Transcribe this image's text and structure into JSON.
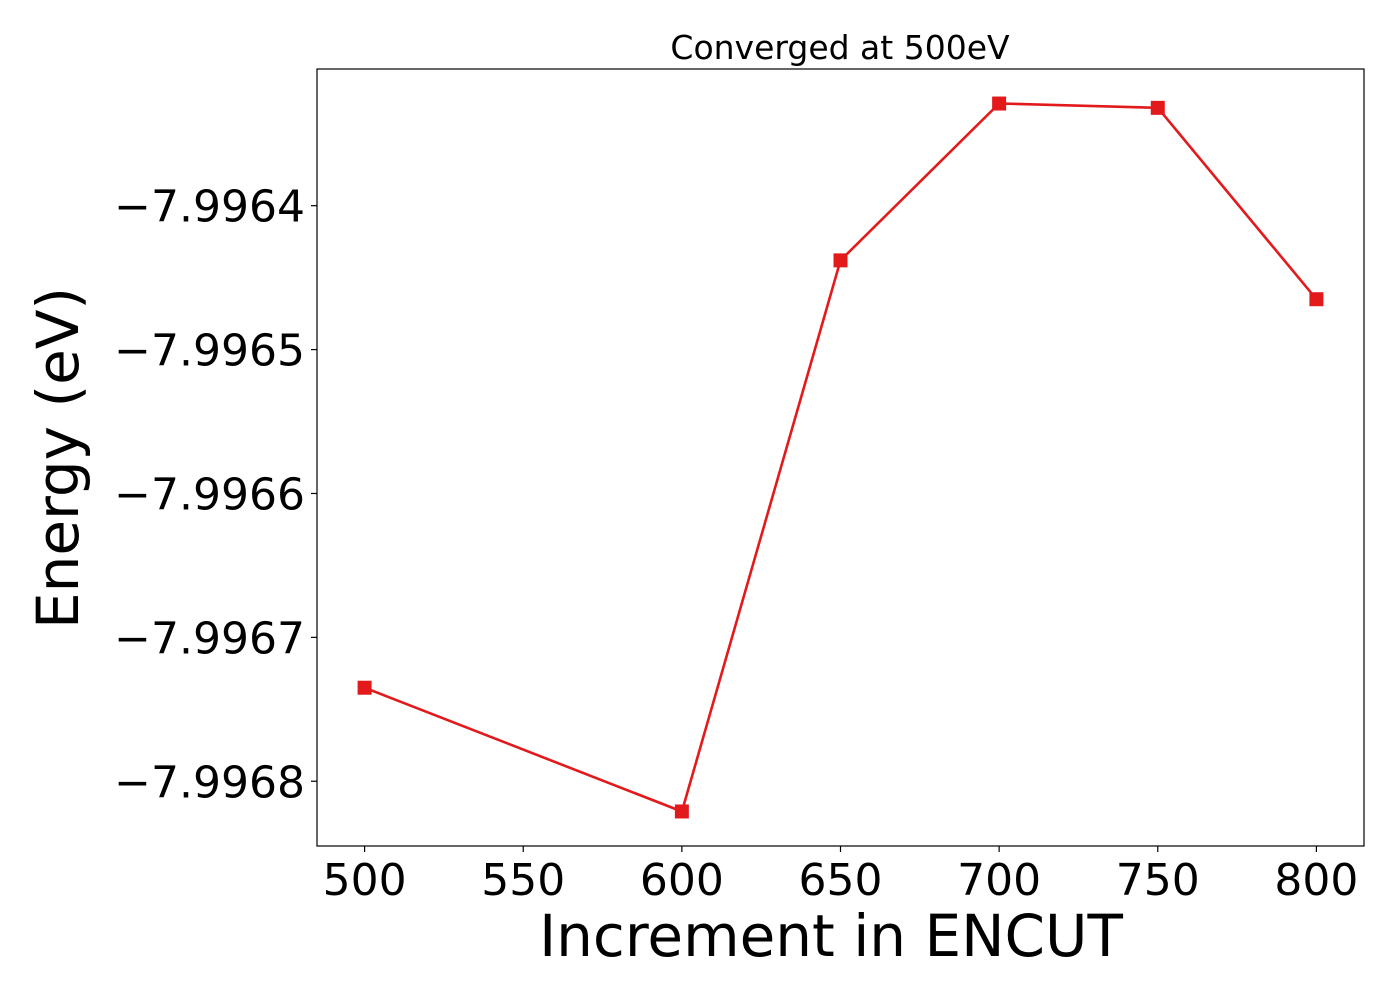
{
  "chart_data": {
    "type": "line",
    "title": "Converged at 500eV",
    "xlabel": "Increment in ENCUT",
    "ylabel": "Energy (eV)",
    "x": [
      500,
      600,
      650,
      700,
      750,
      800
    ],
    "series": [
      {
        "values": [
          -7.996735,
          -7.996821,
          -7.996438,
          -7.996329,
          -7.996332,
          -7.996465
        ],
        "color": "#e31a1c",
        "marker": "square"
      }
    ],
    "xlim": [
      485,
      815
    ],
    "ylim": [
      -7.996845,
      -7.996305
    ],
    "xticks": [
      500,
      550,
      600,
      650,
      700,
      750,
      800
    ],
    "xtick_labels": [
      "500",
      "550",
      "600",
      "650",
      "700",
      "750",
      "800"
    ],
    "yticks": [
      -7.9968,
      -7.9967,
      -7.9966,
      -7.9965,
      -7.9964
    ],
    "ytick_labels": [
      "−7.9968",
      "−7.9967",
      "−7.9966",
      "−7.9965",
      "−7.9964"
    ],
    "grid": false,
    "legend": "none"
  }
}
